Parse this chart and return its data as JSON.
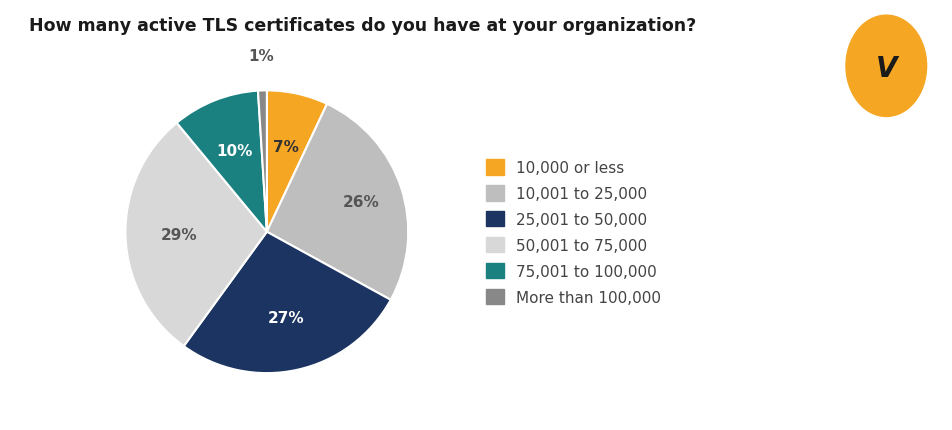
{
  "title": "How many active TLS certificates do you have at your organization?",
  "slices": [
    7,
    26,
    27,
    29,
    10,
    1
  ],
  "labels": [
    "7%",
    "26%",
    "27%",
    "29%",
    "10%",
    "1%"
  ],
  "colors": [
    "#F5A623",
    "#BEBEBE",
    "#1C3461",
    "#D8D8D8",
    "#1A8080",
    "#888888"
  ],
  "legend_labels": [
    "10,000 or less",
    "10,001 to 25,000",
    "25,001 to 50,000",
    "50,001 to 75,000",
    "75,001 to 100,000",
    "More than 100,000"
  ],
  "legend_colors": [
    "#F5A623",
    "#BEBEBE",
    "#1C3461",
    "#D8D8D8",
    "#1A8080",
    "#888888"
  ],
  "startangle": 90,
  "title_fontsize": 12.5,
  "label_fontsize": 11,
  "legend_fontsize": 11,
  "bg_color": "#FFFFFF",
  "venafi_circle_color": "#F5A623",
  "venafi_text_color": "#1a1a1a",
  "label_radii": [
    0.62,
    0.7,
    0.62,
    0.62,
    0.62,
    1.25
  ],
  "label_colors": [
    "#333333",
    "#555555",
    "#FFFFFF",
    "#555555",
    "#FFFFFF",
    "#555555"
  ]
}
